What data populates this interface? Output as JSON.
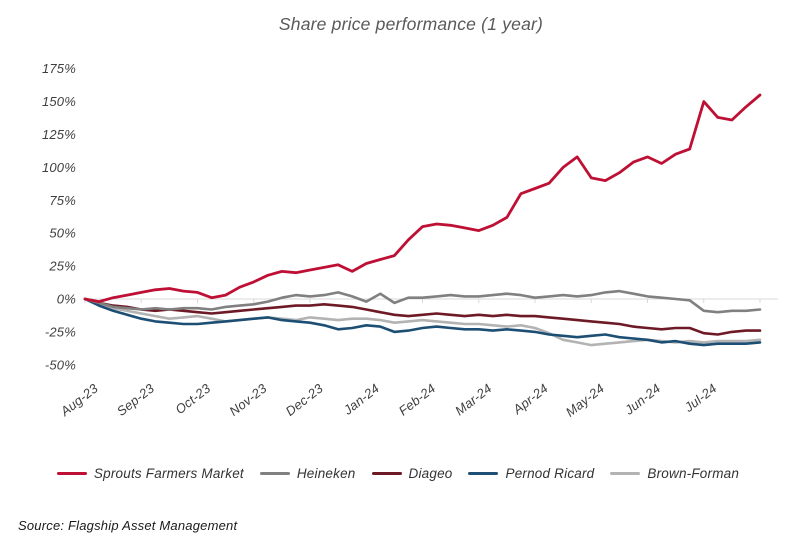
{
  "title": "Share price performance (1 year)",
  "source": "Source: Flagship Asset Management",
  "colors": {
    "background": "#ffffff",
    "title_text": "#595959",
    "axis_text": "#404040",
    "gridline": "#d9d9d9",
    "legend_text": "#333333",
    "source_text": "#1a1a1a",
    "sprouts_red": "#be0f34",
    "heineken_gray": "#808080",
    "diageo_maroon": "#6e1a26",
    "pernod_navy": "#1d4f74",
    "brown_forman_silver": "#b3b3b3"
  },
  "chart_data": {
    "type": "line",
    "title": "Share price performance (1 year)",
    "xlabel": "",
    "ylabel": "",
    "ylim": [
      -50,
      175
    ],
    "y_ticks": [
      175,
      150,
      125,
      100,
      75,
      50,
      25,
      0,
      -25,
      -50
    ],
    "y_tick_labels": [
      "175%",
      "150%",
      "125%",
      "100%",
      "75%",
      "50%",
      "25%",
      "0%",
      "-25%",
      "-50%"
    ],
    "x_tick_labels": [
      "Aug-23",
      "Sep-23",
      "Oct-23",
      "Nov-23",
      "Dec-23",
      "Jan-24",
      "Feb-24",
      "Mar-24",
      "Apr-24",
      "May-24",
      "Jun-24",
      "Jul-24"
    ],
    "grid": "horizontal zero-line only",
    "legend_position": "bottom",
    "unit": "percent change, weekly samples Aug-23 through end Jul-24",
    "series": [
      {
        "name": "Sprouts Farmers Market",
        "color": "#be0f34",
        "values": [
          0,
          -2,
          1,
          3,
          5,
          7,
          8,
          6,
          5,
          1,
          3,
          9,
          13,
          18,
          21,
          20,
          22,
          24,
          26,
          21,
          27,
          30,
          33,
          45,
          55,
          57,
          56,
          54,
          52,
          56,
          62,
          80,
          84,
          88,
          100,
          108,
          92,
          90,
          96,
          104,
          108,
          103,
          110,
          114,
          150,
          138,
          136,
          146,
          155
        ]
      },
      {
        "name": "Heineken",
        "color": "#808080",
        "values": [
          0,
          -3,
          -6,
          -7,
          -8,
          -7,
          -8,
          -7,
          -7,
          -8,
          -6,
          -5,
          -4,
          -2,
          1,
          3,
          2,
          3,
          5,
          2,
          -2,
          4,
          -3,
          1,
          1,
          2,
          3,
          2,
          2,
          3,
          4,
          3,
          1,
          2,
          3,
          2,
          3,
          5,
          6,
          4,
          2,
          1,
          0,
          -1,
          -9,
          -10,
          -9,
          -9,
          -8
        ]
      },
      {
        "name": "Diageo",
        "color": "#6e1a26",
        "values": [
          0,
          -3,
          -5,
          -6,
          -8,
          -9,
          -8,
          -9,
          -10,
          -11,
          -10,
          -9,
          -8,
          -7,
          -6,
          -5,
          -5,
          -4,
          -5,
          -6,
          -8,
          -10,
          -12,
          -13,
          -12,
          -11,
          -12,
          -13,
          -12,
          -13,
          -12,
          -13,
          -13,
          -14,
          -15,
          -16,
          -17,
          -18,
          -19,
          -21,
          -22,
          -23,
          -22,
          -22,
          -26,
          -27,
          -25,
          -24,
          -24
        ]
      },
      {
        "name": "Pernod Ricard",
        "color": "#1d4f74",
        "values": [
          0,
          -5,
          -9,
          -12,
          -15,
          -17,
          -18,
          -19,
          -19,
          -18,
          -17,
          -16,
          -15,
          -14,
          -16,
          -17,
          -18,
          -20,
          -23,
          -22,
          -20,
          -21,
          -25,
          -24,
          -22,
          -21,
          -22,
          -23,
          -23,
          -24,
          -23,
          -24,
          -25,
          -27,
          -28,
          -29,
          -28,
          -27,
          -29,
          -30,
          -31,
          -33,
          -32,
          -34,
          -35,
          -34,
          -34,
          -34,
          -33
        ]
      },
      {
        "name": "Brown-Forman",
        "color": "#b3b3b3",
        "values": [
          0,
          -4,
          -7,
          -9,
          -11,
          -13,
          -15,
          -14,
          -13,
          -15,
          -17,
          -16,
          -15,
          -14,
          -15,
          -16,
          -14,
          -15,
          -16,
          -15,
          -15,
          -16,
          -18,
          -17,
          -16,
          -17,
          -18,
          -19,
          -19,
          -20,
          -21,
          -20,
          -22,
          -26,
          -31,
          -33,
          -35,
          -34,
          -33,
          -32,
          -31,
          -32,
          -33,
          -32,
          -33,
          -32,
          -32,
          -32,
          -31
        ]
      }
    ]
  }
}
